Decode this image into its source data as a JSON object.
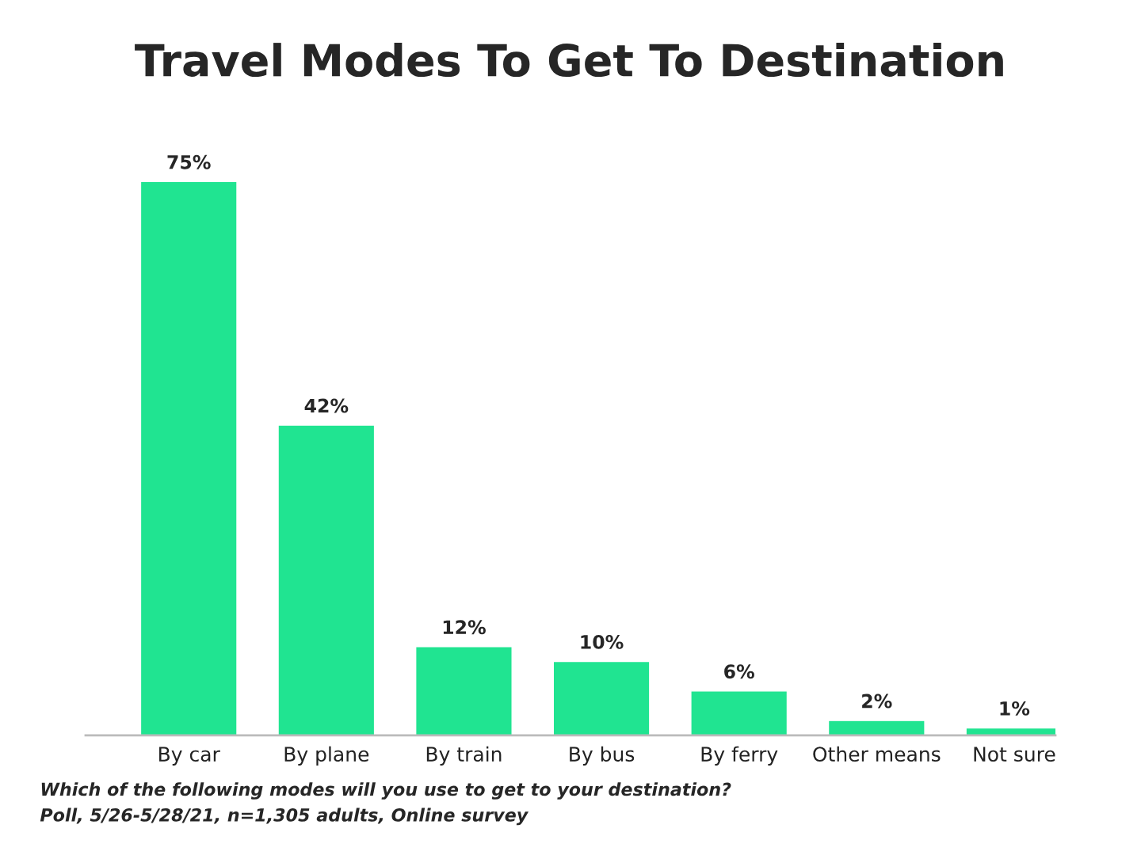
{
  "chart_data": {
    "type": "bar",
    "title": "Travel Modes To Get To Destination",
    "categories": [
      "By car",
      "By plane",
      "By train",
      "By bus",
      "By ferry",
      "Other means",
      "Not sure"
    ],
    "values": [
      75,
      42,
      12,
      10,
      6,
      2,
      1
    ],
    "value_labels": [
      "75%",
      "42%",
      "12%",
      "10%",
      "6%",
      "2%",
      "1%"
    ],
    "color": "#20e491",
    "annotations": [
      "Which of the following modes will you use to get to your destination?",
      "Poll, 5/26-5/28/21, n=1,305 adults, Online survey"
    ],
    "grid": false,
    "legend": false
  }
}
